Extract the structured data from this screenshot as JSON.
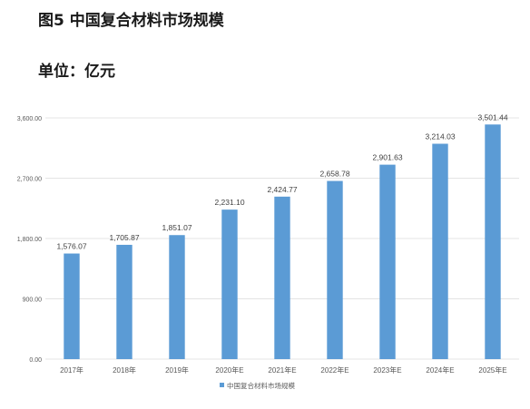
{
  "figure_title": "图5 中国复合材料市场规模",
  "unit_label": "单位：亿元",
  "colors": {
    "bar": "#5b9bd5",
    "grid": "#e4e4e4",
    "axis_text": "#595959"
  },
  "chart_data": {
    "type": "bar",
    "categories": [
      "2017年",
      "2018年",
      "2019年",
      "2020年E",
      "2021年E",
      "2022年E",
      "2023年E",
      "2024年E",
      "2025年E"
    ],
    "series": [
      {
        "name": "中国复合材料市场规模",
        "values": [
          1576.07,
          1705.87,
          1851.07,
          2231.1,
          2424.77,
          2658.78,
          2901.63,
          3214.03,
          3501.44
        ],
        "labels": [
          "1,576.07",
          "1,705.87",
          "1,851.07",
          "2,231.10",
          "2,424.77",
          "2,658.78",
          "2,901.63",
          "3,214.03",
          "3,501.44"
        ]
      }
    ],
    "yticks": [
      0,
      900,
      1800,
      2700,
      3600
    ],
    "ytick_labels": [
      "0.00",
      "900.00",
      "1,800.00",
      "2,700.00",
      "3,600.00"
    ],
    "ylim": [
      0,
      3600
    ],
    "grid": true,
    "legend_position": "bottom"
  }
}
